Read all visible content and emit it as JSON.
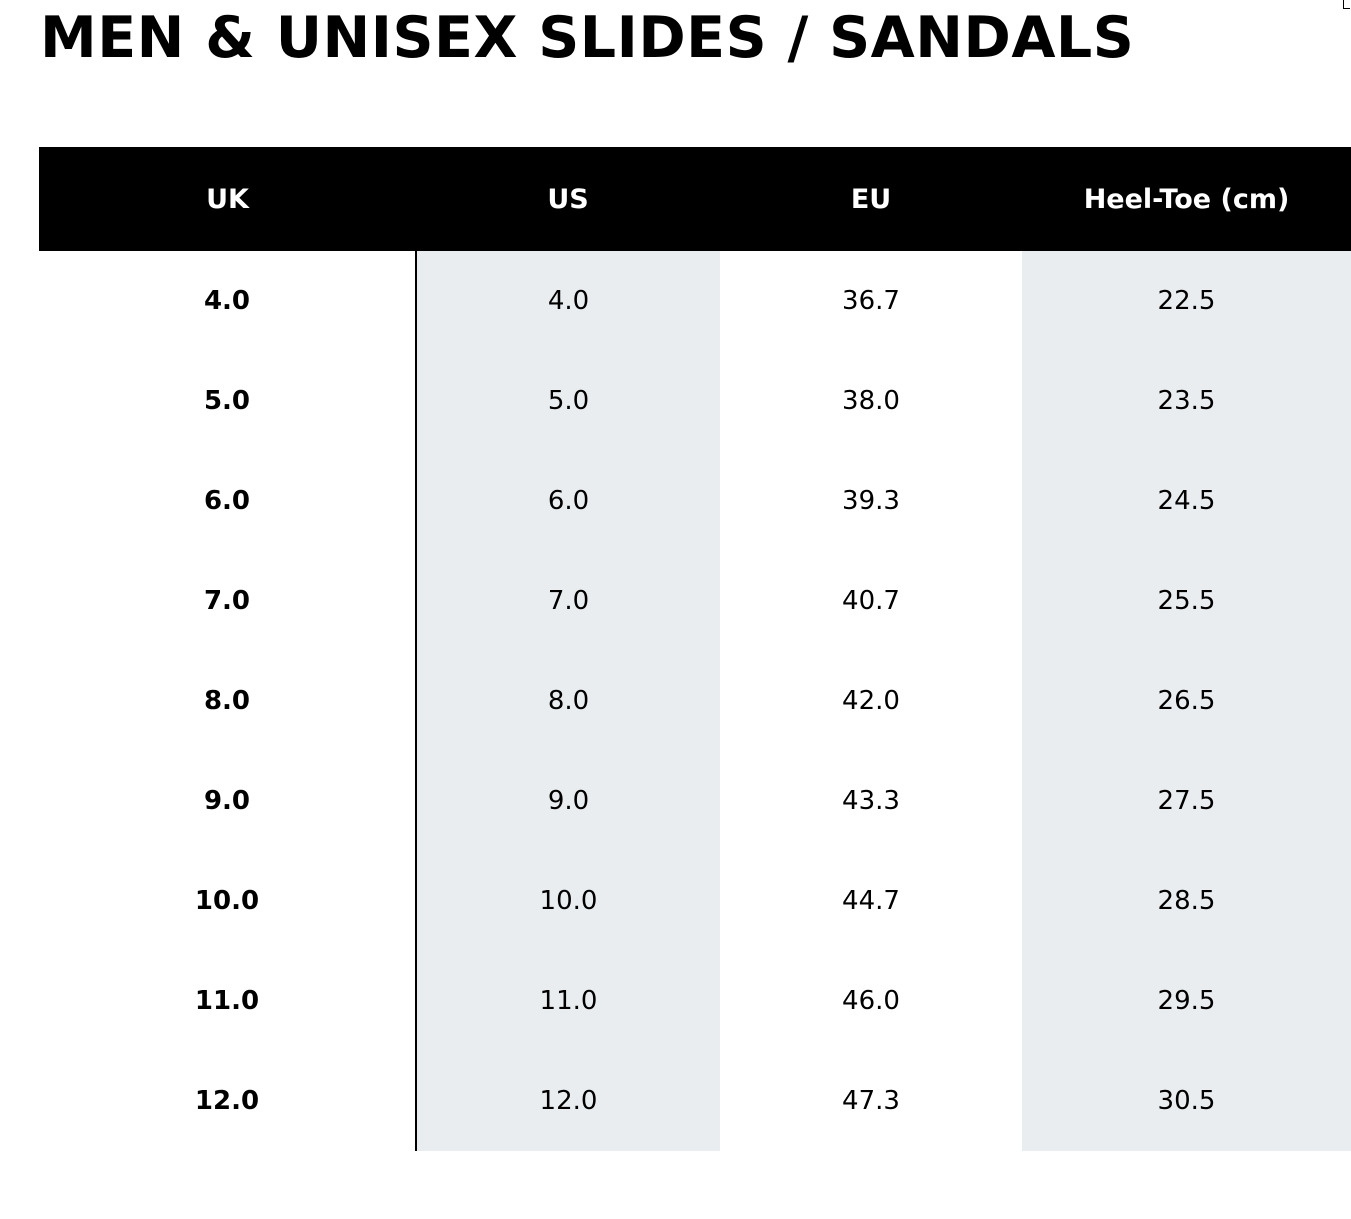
{
  "title": "MEN & UNISEX SLIDES / SANDALS",
  "table": {
    "headers": [
      "UK",
      "US",
      "EU",
      "Heel-Toe (cm)"
    ],
    "rows": [
      [
        "4.0",
        "4.0",
        "36.7",
        "22.5"
      ],
      [
        "5.0",
        "5.0",
        "38.0",
        "23.5"
      ],
      [
        "6.0",
        "6.0",
        "39.3",
        "24.5"
      ],
      [
        "7.0",
        "7.0",
        "40.7",
        "25.5"
      ],
      [
        "8.0",
        "8.0",
        "42.0",
        "26.5"
      ],
      [
        "9.0",
        "9.0",
        "43.3",
        "27.5"
      ],
      [
        "10.0",
        "10.0",
        "44.7",
        "28.5"
      ],
      [
        "11.0",
        "11.0",
        "46.0",
        "29.5"
      ],
      [
        "12.0",
        "12.0",
        "47.3",
        "30.5"
      ]
    ]
  },
  "colors": {
    "header_bg": "#000000",
    "header_text": "#ffffff",
    "shaded_column": "#e9edf0"
  }
}
